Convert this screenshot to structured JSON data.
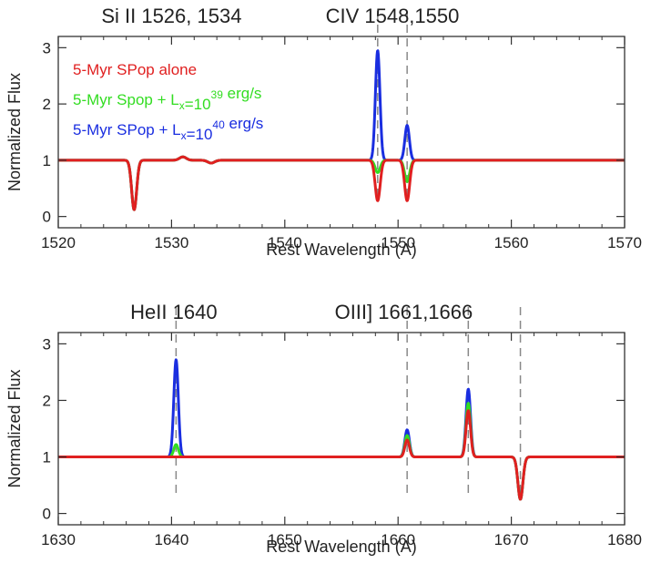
{
  "chart_data": [
    {
      "type": "line",
      "xlabel": "Rest Wavelength (A)",
      "ylabel": "Normalized Flux",
      "xlim": [
        1520,
        1570
      ],
      "ylim": [
        -0.2,
        3.2
      ],
      "xticks": [
        "1520",
        "1530",
        "1540",
        "1550",
        "1560",
        "1570"
      ],
      "yticks": [
        "0",
        "1",
        "2",
        "3"
      ],
      "annotations": [
        {
          "text": "Si II 1526, 1534",
          "x": 1530
        },
        {
          "text": "CIV 1548,1550",
          "x": 1549.5
        }
      ],
      "marker_lines": [
        1548.2,
        1550.8
      ],
      "legend": {
        "placement": "upper-left",
        "entries": [
          {
            "color": "#e02020",
            "parts": [
              {
                "t": "5-Myr SPop alone"
              }
            ]
          },
          {
            "color": "#33dd22",
            "parts": [
              {
                "t": "5-Myr  Spop  + L"
              },
              {
                "t": "x",
                "sub": true
              },
              {
                "t": "=10"
              },
              {
                "t": "39",
                "sup": true
              },
              {
                "t": " erg/s"
              }
            ]
          },
          {
            "color": "#1a2ee0",
            "parts": [
              {
                "t": "5-Myr SPop + L"
              },
              {
                "t": "x",
                "sub": true
              },
              {
                "t": "=10"
              },
              {
                "t": "40",
                "sup": true
              },
              {
                "t": " erg/s"
              }
            ]
          }
        ]
      },
      "series": [
        {
          "color": "#1a2ee0",
          "baseline": 1.0,
          "features": [
            {
              "x0": 1526.7,
              "depth": -0.88,
              "sigma": 0.22
            },
            {
              "x0": 1531.0,
              "depth": 0.06,
              "sigma": 0.3
            },
            {
              "x0": 1533.5,
              "depth": -0.05,
              "sigma": 0.3
            },
            {
              "x0": 1548.2,
              "depth": 1.95,
              "sigma": 0.2
            },
            {
              "x0": 1550.8,
              "depth": 0.62,
              "sigma": 0.2
            }
          ]
        },
        {
          "color": "#33dd22",
          "baseline": 1.0,
          "features": [
            {
              "x0": 1526.7,
              "depth": -0.88,
              "sigma": 0.22
            },
            {
              "x0": 1531.0,
              "depth": 0.06,
              "sigma": 0.3
            },
            {
              "x0": 1533.5,
              "depth": -0.05,
              "sigma": 0.3
            },
            {
              "x0": 1548.2,
              "depth": -0.22,
              "sigma": 0.22
            },
            {
              "x0": 1550.8,
              "depth": -0.38,
              "sigma": 0.22
            }
          ]
        },
        {
          "color": "#e02020",
          "baseline": 1.0,
          "features": [
            {
              "x0": 1526.7,
              "depth": -0.88,
              "sigma": 0.22
            },
            {
              "x0": 1531.0,
              "depth": 0.06,
              "sigma": 0.3
            },
            {
              "x0": 1533.5,
              "depth": -0.05,
              "sigma": 0.3
            },
            {
              "x0": 1548.2,
              "depth": -0.72,
              "sigma": 0.22
            },
            {
              "x0": 1550.8,
              "depth": -0.72,
              "sigma": 0.22
            }
          ]
        }
      ]
    },
    {
      "type": "line",
      "xlabel": "Rest Wavelength (A)",
      "ylabel": "Normalized Flux",
      "xlim": [
        1630,
        1680
      ],
      "ylim": [
        -0.2,
        3.2
      ],
      "xticks": [
        "1630",
        "1640",
        "1650",
        "1660",
        "1670",
        "1680"
      ],
      "yticks": [
        "0",
        "1",
        "2",
        "3"
      ],
      "annotations": [
        {
          "text": "HeII 1640",
          "x": 1640.2
        },
        {
          "text": "OIII] 1661,1666",
          "x": 1660.5
        }
      ],
      "marker_lines": [
        1640.4,
        1660.8,
        1666.2,
        1670.8
      ],
      "series": [
        {
          "color": "#1a2ee0",
          "baseline": 1.0,
          "features": [
            {
              "x0": 1640.4,
              "depth": 1.72,
              "sigma": 0.2
            },
            {
              "x0": 1660.8,
              "depth": 0.48,
              "sigma": 0.2
            },
            {
              "x0": 1666.2,
              "depth": 1.2,
              "sigma": 0.2
            },
            {
              "x0": 1670.8,
              "depth": -0.75,
              "sigma": 0.22
            }
          ]
        },
        {
          "color": "#33dd22",
          "baseline": 1.0,
          "features": [
            {
              "x0": 1640.4,
              "depth": 0.22,
              "sigma": 0.2
            },
            {
              "x0": 1660.8,
              "depth": 0.38,
              "sigma": 0.2
            },
            {
              "x0": 1666.2,
              "depth": 0.95,
              "sigma": 0.2
            },
            {
              "x0": 1670.8,
              "depth": -0.75,
              "sigma": 0.22
            }
          ]
        },
        {
          "color": "#e02020",
          "baseline": 1.0,
          "features": [
            {
              "x0": 1660.8,
              "depth": 0.3,
              "sigma": 0.2
            },
            {
              "x0": 1666.2,
              "depth": 0.82,
              "sigma": 0.2
            },
            {
              "x0": 1670.8,
              "depth": -0.75,
              "sigma": 0.22
            }
          ]
        }
      ]
    }
  ]
}
